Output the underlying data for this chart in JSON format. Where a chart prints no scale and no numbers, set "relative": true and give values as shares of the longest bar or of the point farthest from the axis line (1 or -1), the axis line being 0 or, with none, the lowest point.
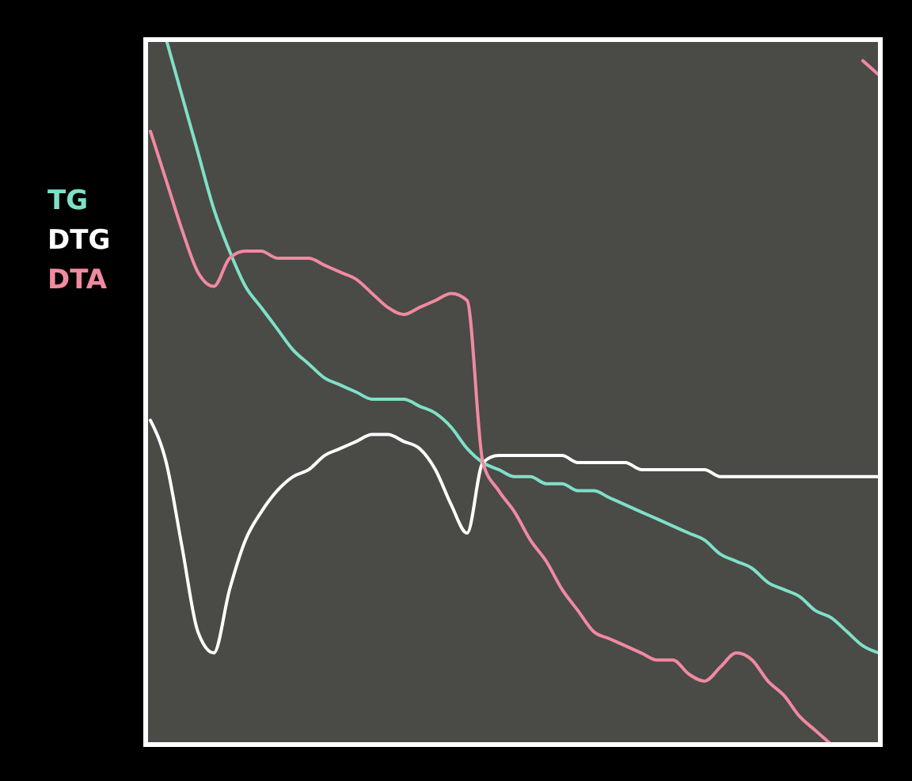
{
  "chart_data": {
    "type": "line",
    "relative": true,
    "legend": "left",
    "categories": [
      null,
      null,
      null,
      null,
      null,
      null,
      null,
      null,
      null,
      null,
      null,
      null,
      null,
      null,
      null,
      null,
      null,
      null,
      null,
      null,
      null,
      null,
      null,
      null,
      null,
      null,
      null,
      null,
      null,
      null,
      null,
      null,
      null,
      null,
      null,
      null,
      null,
      null,
      null,
      null,
      null,
      null,
      null,
      null,
      null,
      null,
      null
    ],
    "series": [
      {
        "name": "TG",
        "color": "#7fe0c8",
        "values": [
          null,
          1.0,
          0.92,
          0.84,
          0.76,
          0.7,
          0.65,
          0.62,
          0.59,
          0.56,
          0.54,
          0.52,
          0.51,
          0.5,
          0.49,
          0.49,
          0.49,
          0.48,
          0.47,
          0.45,
          0.42,
          0.4,
          0.39,
          0.38,
          0.38,
          0.37,
          0.37,
          0.36,
          0.36,
          0.35,
          0.34,
          0.33,
          0.32,
          0.31,
          0.3,
          0.29,
          0.27,
          0.26,
          0.25,
          0.23,
          0.22,
          0.21,
          0.19,
          0.18,
          0.16,
          0.14,
          0.13
        ]
      },
      {
        "name": "DTG",
        "color": "#ffffff",
        "values": [
          0.46,
          0.4,
          0.28,
          0.16,
          0.13,
          0.22,
          0.29,
          0.33,
          0.36,
          0.38,
          0.39,
          0.41,
          0.42,
          0.43,
          0.44,
          0.44,
          0.43,
          0.42,
          0.39,
          0.34,
          0.3,
          0.4,
          0.41,
          0.41,
          0.41,
          0.41,
          0.41,
          0.4,
          0.4,
          0.4,
          0.4,
          0.39,
          0.39,
          0.39,
          0.39,
          0.39,
          0.38,
          0.38,
          0.38,
          0.38,
          0.38,
          0.38,
          0.38,
          0.38,
          0.38,
          0.38,
          0.38
        ]
      },
      {
        "name": "DTA",
        "color": "#f08aa0",
        "values": [
          0.87,
          0.8,
          0.73,
          0.67,
          0.65,
          0.69,
          0.7,
          0.7,
          0.69,
          0.69,
          0.69,
          0.68,
          0.67,
          0.66,
          0.64,
          0.62,
          0.61,
          0.62,
          0.63,
          0.64,
          0.63,
          0.4,
          0.36,
          0.33,
          0.29,
          0.26,
          0.22,
          0.19,
          0.16,
          0.15,
          0.14,
          0.13,
          0.12,
          0.12,
          0.1,
          0.09,
          0.11,
          0.13,
          0.12,
          0.09,
          0.07,
          0.04,
          0.02,
          0,
          null,
          0.97,
          0.95
        ]
      }
    ]
  }
}
